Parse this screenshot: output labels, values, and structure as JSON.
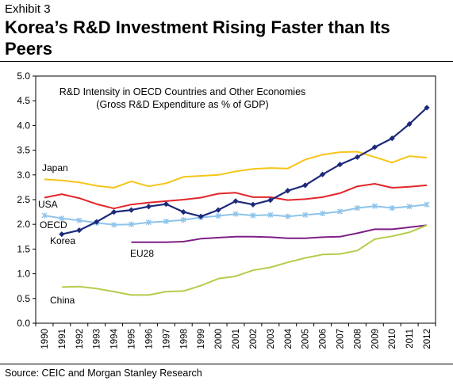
{
  "header": {
    "exhibit": "Exhibit 3",
    "title": "Korea’s R&D Investment Rising Faster than Its Peers"
  },
  "footer": {
    "source": "Source: CEIC and Morgan Stanley Research"
  },
  "chart_data": {
    "type": "line",
    "title": "R&D Intensity in OECD Countries and Other Economies",
    "subtitle": "(Gross R&D Expenditure as % of GDP)",
    "xlabel": "",
    "ylabel": "",
    "ylim": [
      0,
      5
    ],
    "yticks": [
      "0.0",
      "0.5",
      "1.0",
      "1.5",
      "2.0",
      "2.5",
      "3.0",
      "3.5",
      "4.0",
      "4.5",
      "5.0"
    ],
    "x": [
      "1990",
      "1991",
      "1992",
      "1993",
      "1994",
      "1995",
      "1996",
      "1997",
      "1998",
      "1999",
      "2000",
      "2001",
      "2002",
      "2003",
      "2004",
      "2005",
      "2006",
      "2007",
      "2008",
      "2009",
      "2010",
      "2011",
      "2012"
    ],
    "grid": false,
    "legend": "inline labels",
    "series": [
      {
        "name": "Japan",
        "color": "#f5c518",
        "marker": "none",
        "values": [
          2.91,
          2.89,
          2.85,
          2.78,
          2.74,
          2.87,
          2.77,
          2.83,
          2.96,
          2.98,
          3.0,
          3.07,
          3.12,
          3.14,
          3.13,
          3.31,
          3.41,
          3.46,
          3.47,
          3.36,
          3.25,
          3.38,
          3.35
        ]
      },
      {
        "name": "USA",
        "color": "#e3262a",
        "marker": "none",
        "values": [
          2.54,
          2.61,
          2.53,
          2.41,
          2.32,
          2.4,
          2.44,
          2.47,
          2.5,
          2.54,
          2.62,
          2.64,
          2.55,
          2.55,
          2.49,
          2.51,
          2.55,
          2.63,
          2.77,
          2.82,
          2.74,
          2.76,
          2.79
        ]
      },
      {
        "name": "OECD",
        "color": "#8ec3ea",
        "marker": "x",
        "values": [
          2.18,
          2.12,
          2.08,
          2.03,
          1.99,
          2.0,
          2.04,
          2.06,
          2.09,
          2.14,
          2.17,
          2.21,
          2.18,
          2.19,
          2.16,
          2.19,
          2.22,
          2.26,
          2.33,
          2.37,
          2.33,
          2.36,
          2.4
        ]
      },
      {
        "name": "Korea",
        "color": "#1d2a7a",
        "marker": "diamond",
        "values": [
          null,
          1.8,
          1.88,
          2.05,
          2.25,
          2.29,
          2.36,
          2.41,
          2.25,
          2.16,
          2.29,
          2.47,
          2.4,
          2.49,
          2.68,
          2.79,
          3.01,
          3.21,
          3.36,
          3.56,
          3.74,
          4.03,
          4.36
        ]
      },
      {
        "name": "EU28",
        "color": "#7e1f86",
        "marker": "none",
        "values": [
          null,
          null,
          null,
          null,
          null,
          1.64,
          1.64,
          1.64,
          1.65,
          1.71,
          1.73,
          1.75,
          1.75,
          1.74,
          1.72,
          1.72,
          1.74,
          1.75,
          1.82,
          1.9,
          1.9,
          1.94,
          1.98
        ]
      },
      {
        "name": "China",
        "color": "#b5cc4b",
        "marker": "none",
        "values": [
          null,
          0.73,
          0.74,
          0.7,
          0.64,
          0.57,
          0.57,
          0.64,
          0.65,
          0.76,
          0.9,
          0.95,
          1.07,
          1.13,
          1.23,
          1.32,
          1.39,
          1.4,
          1.47,
          1.7,
          1.76,
          1.84,
          1.98
        ]
      }
    ]
  }
}
